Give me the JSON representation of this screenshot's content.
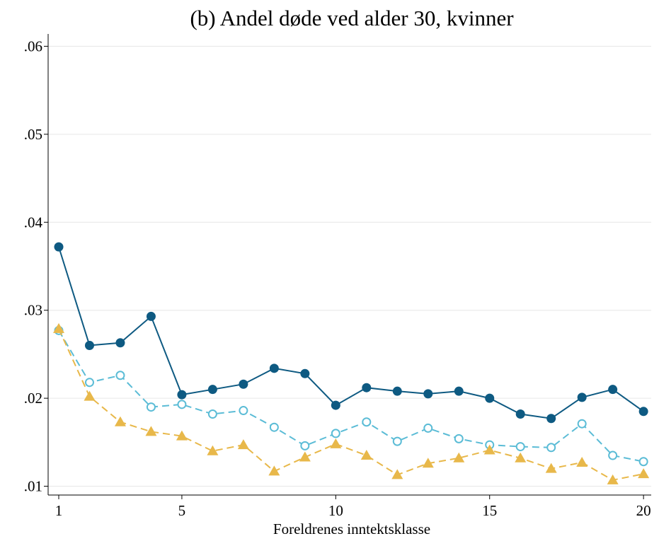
{
  "chart_data": {
    "type": "line",
    "title": "(b) Andel døde ved alder 30, kvinner",
    "x_label": "Foreldrenes inntektsklasse",
    "x": [
      1,
      2,
      3,
      4,
      5,
      6,
      7,
      8,
      9,
      10,
      11,
      12,
      13,
      14,
      15,
      16,
      17,
      18,
      19,
      20
    ],
    "xlim": [
      0.655,
      20.25
    ],
    "xticks": [
      1,
      5,
      10,
      15,
      20
    ],
    "ylim": [
      0.009,
      0.0614
    ],
    "yticks": [
      {
        "value": 0.01,
        "label": ".01"
      },
      {
        "value": 0.02,
        "label": ".02"
      },
      {
        "value": 0.03,
        "label": ".03"
      },
      {
        "value": 0.04,
        "label": ".04"
      },
      {
        "value": 0.05,
        "label": ".05"
      },
      {
        "value": 0.06,
        "label": ".06"
      }
    ],
    "grid": true,
    "series": [
      {
        "color": "#0e5a82",
        "marker": "filled-circle",
        "dash": "solid",
        "values": [
          0.0372,
          0.026,
          0.0263,
          0.0293,
          0.0204,
          0.021,
          0.0216,
          0.0234,
          0.0228,
          0.0192,
          0.0212,
          0.0208,
          0.0205,
          0.0208,
          0.02,
          0.0182,
          0.0177,
          0.0201,
          0.021,
          0.0185
        ]
      },
      {
        "color": "#5bbcd6",
        "marker": "hollow-circle",
        "dash": "dashed",
        "values": [
          0.0277,
          0.0218,
          0.0226,
          0.019,
          0.0193,
          0.0182,
          0.0186,
          0.0167,
          0.0146,
          0.016,
          0.0173,
          0.0151,
          0.0166,
          0.0154,
          0.0147,
          0.0145,
          0.0144,
          0.0171,
          0.0135,
          0.0128
        ]
      },
      {
        "color": "#e8b84a",
        "marker": "triangle",
        "dash": "dashed",
        "values": [
          0.0279,
          0.0202,
          0.0173,
          0.0162,
          0.0157,
          0.014,
          0.0147,
          0.0117,
          0.0133,
          0.0148,
          0.0135,
          0.0113,
          0.0126,
          0.0132,
          0.0141,
          0.0132,
          0.012,
          0.0127,
          0.0107,
          0.0114
        ]
      }
    ]
  }
}
